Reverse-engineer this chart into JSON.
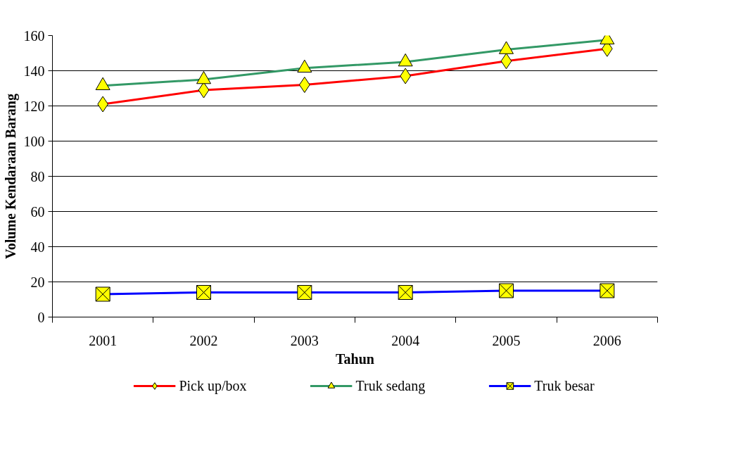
{
  "chart_data": {
    "type": "line",
    "xlabel": "Tahun",
    "ylabel": "Volume Kendaraan Barang",
    "categories": [
      "2001",
      "2002",
      "2003",
      "2004",
      "2005",
      "2006"
    ],
    "series": [
      {
        "name": "Pick up/box",
        "color": "#ff0000",
        "marker": "diamond",
        "values": [
          121,
          129,
          132,
          137,
          145.5,
          152.5
        ]
      },
      {
        "name": "Truk sedang",
        "color": "#339966",
        "marker": "triangle",
        "values": [
          131.5,
          135,
          141.5,
          145,
          152,
          157.5
        ]
      },
      {
        "name": "Truk besar",
        "color": "#0000ff",
        "marker": "cross",
        "values": [
          13,
          14,
          14,
          14,
          15,
          15
        ]
      }
    ],
    "ylim": [
      0,
      160
    ],
    "yticks": [
      0,
      20,
      40,
      60,
      80,
      100,
      120,
      140,
      160
    ],
    "grid": "y",
    "legend": "bottom",
    "line_style": "solid"
  }
}
